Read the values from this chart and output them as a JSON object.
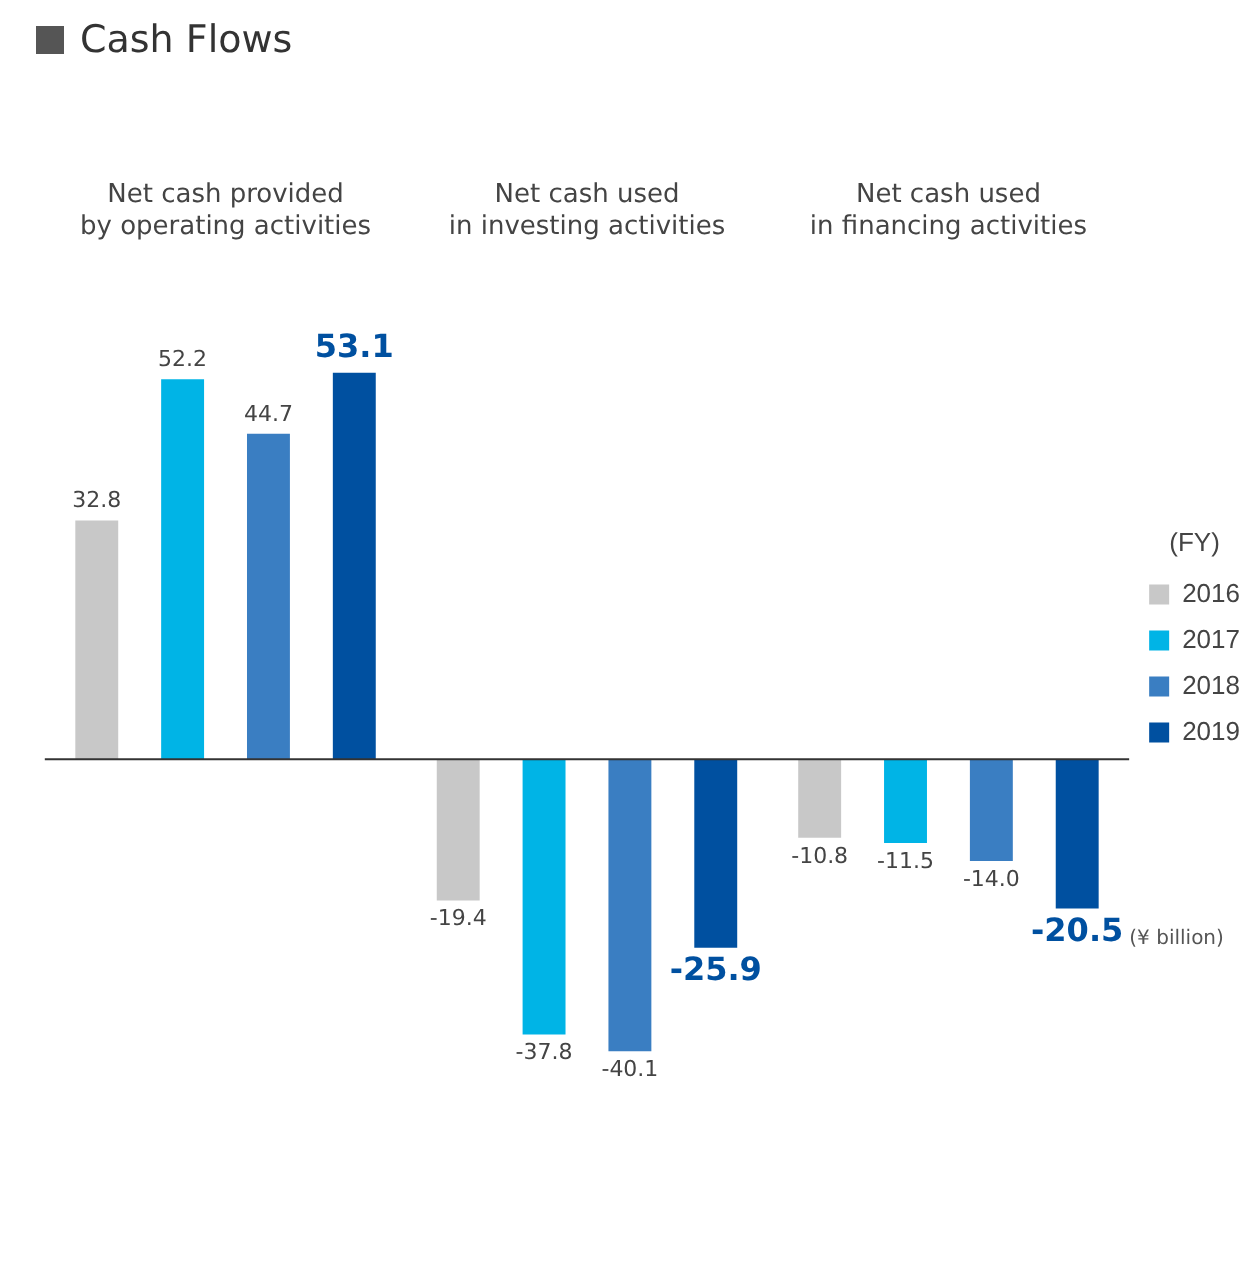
{
  "chart_data": {
    "type": "bar",
    "title": "Cash Flows",
    "categories": [
      "Net cash provided\nby operating activities",
      "Net cash used\nin investing activities",
      "Net cash used\nin financing activities"
    ],
    "series": [
      {
        "name": "2016",
        "color": "#c8c8c8",
        "values": [
          32.8,
          -19.4,
          -10.8
        ],
        "value_labels": [
          "32.8",
          "-19.4",
          "-10.8"
        ]
      },
      {
        "name": "2017",
        "color": "#00b4e6",
        "values": [
          52.2,
          -37.8,
          -11.5
        ],
        "value_labels": [
          "52.2",
          "-37.8",
          "-11.5"
        ]
      },
      {
        "name": "2018",
        "color": "#3a7ec2",
        "values": [
          44.7,
          -40.1,
          -14.0
        ],
        "value_labels": [
          "44.7",
          "-40.1",
          "-14.0"
        ]
      },
      {
        "name": "2019",
        "color": "#0050a0",
        "values": [
          53.1,
          -25.9,
          -20.5
        ],
        "value_labels": [
          "53.1",
          "-25.9",
          "-20.5"
        ]
      }
    ],
    "legend": "right",
    "legend_title": "(FY)",
    "grid": false,
    "annotations": [
      "(¥ billion)"
    ]
  }
}
